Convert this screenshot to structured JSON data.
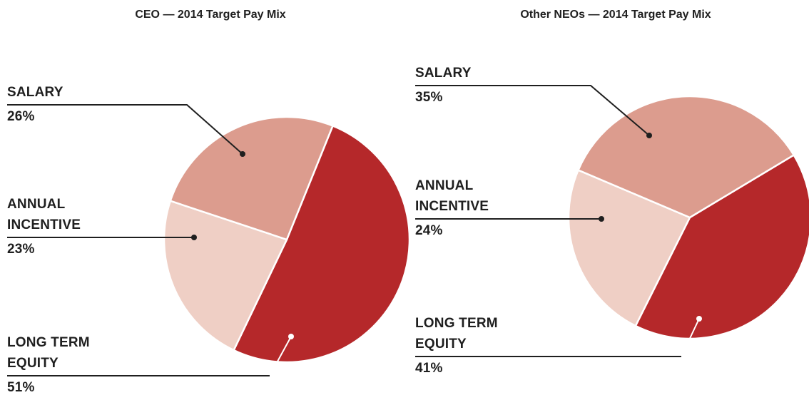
{
  "chart_data": [
    {
      "type": "pie",
      "title": "CEO — 2014 Target Pay Mix",
      "categories": [
        "SALARY",
        "ANNUAL INCENTIVE",
        "LONG TERM EQUITY"
      ],
      "values": [
        26,
        23,
        51
      ],
      "value_labels": [
        "26%",
        "23%",
        "51%"
      ],
      "colors": [
        "#dc9c8e",
        "#efcfc5",
        "#b5282a"
      ]
    },
    {
      "type": "pie",
      "title": "Other NEOs — 2014 Target Pay Mix",
      "categories": [
        "SALARY",
        "ANNUAL INCENTIVE",
        "LONG TERM EQUITY"
      ],
      "values": [
        35,
        24,
        41
      ],
      "value_labels": [
        "35%",
        "24%",
        "41%"
      ],
      "colors": [
        "#dc9c8e",
        "#efcfc5",
        "#b5282a"
      ]
    }
  ]
}
